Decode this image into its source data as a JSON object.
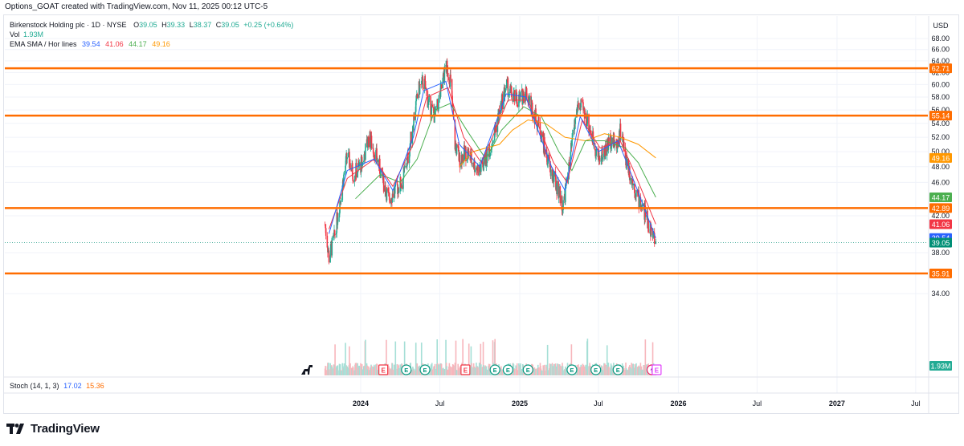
{
  "header": {
    "attribution": "Options_GOAT created with TradingView.com, Nov 11, 2025 00:12 UTC-5"
  },
  "legend": {
    "symbol": "Birkenstock Holding plc · 1D · NYSE",
    "ohlc": {
      "o_label": "O",
      "o": "39.05",
      "h_label": "H",
      "h": "39.33",
      "l_label": "L",
      "l": "38.37",
      "c_label": "C",
      "c": "39.05",
      "change": "+0.25 (+0.64%)"
    },
    "vol_label": "Vol",
    "vol_value": "1.93M",
    "ema_label": "EMA SMA / Hor lines",
    "ema_values": [
      "39.54",
      "41.06",
      "44.17",
      "49.16"
    ]
  },
  "stoch": {
    "label": "Stoch (14, 1, 3)",
    "k": "17.02",
    "d": "15.36"
  },
  "footer": {
    "logo_text": "TradingView"
  },
  "colors": {
    "up": "#22ab94",
    "down": "#f23645",
    "hline": "#ff6d00",
    "ema_blue": "#2962ff",
    "ema_red": "#f23645",
    "ma_green": "#4caf50",
    "ma_orange": "#ff9800",
    "last_price": "#008f76",
    "grid": "#f0f3fa"
  },
  "icons": [
    "dinosaur-icon",
    "earnings-icon",
    "dividend-icon",
    "lightning-icon"
  ],
  "chart_data": {
    "type": "candlestick",
    "currency": "USD",
    "y_axis": {
      "scale": "log",
      "ticks": [
        "68.00",
        "66.00",
        "64.00",
        "62.00",
        "60.00",
        "58.00",
        "56.00",
        "54.00",
        "52.00",
        "50.00",
        "48.00",
        "46.00",
        "42.00",
        "38.00",
        "34.00"
      ]
    },
    "x_axis": {
      "ticks": [
        "2024",
        "Jul",
        "2025",
        "Jul",
        "2026",
        "Jul",
        "2027",
        "Jul"
      ]
    },
    "horizontal_lines": [
      62.71,
      55.14,
      42.89,
      35.91
    ],
    "price_labels": [
      {
        "value": 62.71,
        "text": "62.71",
        "color": "#ff6d00"
      },
      {
        "value": 55.14,
        "text": "55.14",
        "color": "#ff6d00"
      },
      {
        "value": 49.16,
        "text": "49.16",
        "color": "#ff9800"
      },
      {
        "value": 44.17,
        "text": "44.17",
        "color": "#4caf50"
      },
      {
        "value": 42.89,
        "text": "42.89",
        "color": "#ff6d00"
      },
      {
        "value": 41.06,
        "text": "41.06",
        "color": "#f23645"
      },
      {
        "value": 39.54,
        "text": "39.54",
        "color": "#2962ff"
      },
      {
        "value": 39.05,
        "text": "39.05",
        "color": "#008f76"
      },
      {
        "value": 35.91,
        "text": "35.91",
        "color": "#ff6d00"
      }
    ],
    "volume_label": "1.93M",
    "price_path": [
      [
        "2023-10-11",
        41.0
      ],
      [
        "2023-10-20",
        37.5
      ],
      [
        "2023-11-01",
        39.5
      ],
      [
        "2023-11-15",
        44.0
      ],
      [
        "2023-12-01",
        49.5
      ],
      [
        "2023-12-15",
        47.0
      ],
      [
        "2024-01-05",
        48.5
      ],
      [
        "2024-01-20",
        52.0
      ],
      [
        "2024-02-05",
        49.5
      ],
      [
        "2024-02-20",
        46.5
      ],
      [
        "2024-03-05",
        44.0
      ],
      [
        "2024-03-20",
        45.0
      ],
      [
        "2024-04-05",
        46.0
      ],
      [
        "2024-04-20",
        49.5
      ],
      [
        "2024-05-05",
        56.0
      ],
      [
        "2024-05-15",
        59.5
      ],
      [
        "2024-05-25",
        60.5
      ],
      [
        "2024-06-05",
        57.0
      ],
      [
        "2024-06-20",
        55.0
      ],
      [
        "2024-07-01",
        58.0
      ],
      [
        "2024-07-15",
        63.0
      ],
      [
        "2024-07-25",
        61.0
      ],
      [
        "2024-08-05",
        51.0
      ],
      [
        "2024-08-15",
        49.0
      ],
      [
        "2024-09-01",
        50.0
      ],
      [
        "2024-09-15",
        48.5
      ],
      [
        "2024-10-01",
        47.5
      ],
      [
        "2024-10-15",
        49.0
      ],
      [
        "2024-11-01",
        52.0
      ],
      [
        "2024-11-15",
        55.5
      ],
      [
        "2024-12-01",
        60.0
      ],
      [
        "2024-12-15",
        58.0
      ],
      [
        "2025-01-01",
        57.5
      ],
      [
        "2025-01-15",
        59.0
      ],
      [
        "2025-01-31",
        56.0
      ],
      [
        "2025-02-15",
        53.5
      ],
      [
        "2025-03-01",
        50.0
      ],
      [
        "2025-03-15",
        47.0
      ],
      [
        "2025-04-01",
        45.0
      ],
      [
        "2025-04-10",
        43.0
      ],
      [
        "2025-04-25",
        48.0
      ],
      [
        "2025-05-05",
        53.0
      ],
      [
        "2025-05-15",
        57.0
      ],
      [
        "2025-05-25",
        56.0
      ],
      [
        "2025-06-05",
        54.5
      ],
      [
        "2025-06-20",
        51.5
      ],
      [
        "2025-07-01",
        49.0
      ],
      [
        "2025-07-15",
        50.0
      ],
      [
        "2025-08-01",
        52.0
      ],
      [
        "2025-08-10",
        50.5
      ],
      [
        "2025-08-20",
        53.0
      ],
      [
        "2025-09-01",
        49.5
      ],
      [
        "2025-09-15",
        46.5
      ],
      [
        "2025-10-01",
        44.0
      ],
      [
        "2025-10-15",
        42.5
      ],
      [
        "2025-10-25",
        41.0
      ],
      [
        "2025-11-10",
        39.05
      ]
    ],
    "ema_blue": [
      [
        "2023-10-20",
        40.0
      ],
      [
        "2023-12-01",
        47.5
      ],
      [
        "2024-02-01",
        49.0
      ],
      [
        "2024-03-15",
        45.0
      ],
      [
        "2024-05-01",
        52.0
      ],
      [
        "2024-05-25",
        59.0
      ],
      [
        "2024-07-15",
        60.5
      ],
      [
        "2024-08-15",
        51.0
      ],
      [
        "2024-10-01",
        48.0
      ],
      [
        "2024-12-01",
        58.5
      ],
      [
        "2025-01-15",
        58.0
      ],
      [
        "2025-03-15",
        48.0
      ],
      [
        "2025-04-15",
        45.0
      ],
      [
        "2025-05-20",
        55.0
      ],
      [
        "2025-07-01",
        50.0
      ],
      [
        "2025-08-15",
        51.5
      ],
      [
        "2025-09-15",
        47.0
      ],
      [
        "2025-11-10",
        39.54
      ]
    ],
    "ema_red": [
      [
        "2023-10-20",
        40.5
      ],
      [
        "2023-12-01",
        46.5
      ],
      [
        "2024-02-01",
        49.0
      ],
      [
        "2024-03-15",
        45.5
      ],
      [
        "2024-05-05",
        51.5
      ],
      [
        "2024-06-01",
        58.0
      ],
      [
        "2024-07-20",
        59.5
      ],
      [
        "2024-08-25",
        52.0
      ],
      [
        "2024-10-05",
        48.5
      ],
      [
        "2024-12-05",
        57.5
      ],
      [
        "2025-01-20",
        57.5
      ],
      [
        "2025-03-20",
        48.5
      ],
      [
        "2025-04-20",
        46.0
      ],
      [
        "2025-05-25",
        54.5
      ],
      [
        "2025-07-05",
        50.5
      ],
      [
        "2025-08-20",
        51.5
      ],
      [
        "2025-09-20",
        47.5
      ],
      [
        "2025-11-10",
        41.06
      ]
    ],
    "ma_green": [
      [
        "2023-12-20",
        44.0
      ],
      [
        "2024-02-15",
        47.0
      ],
      [
        "2024-04-01",
        46.0
      ],
      [
        "2024-05-10",
        49.0
      ],
      [
        "2024-06-20",
        56.0
      ],
      [
        "2024-07-25",
        57.0
      ],
      [
        "2024-09-01",
        53.0
      ],
      [
        "2024-10-15",
        49.0
      ],
      [
        "2024-11-20",
        53.0
      ],
      [
        "2025-01-10",
        56.5
      ],
      [
        "2025-02-20",
        55.0
      ],
      [
        "2025-04-01",
        50.0
      ],
      [
        "2025-05-01",
        47.5
      ],
      [
        "2025-06-01",
        51.5
      ],
      [
        "2025-07-15",
        51.5
      ],
      [
        "2025-09-01",
        50.5
      ],
      [
        "2025-10-01",
        48.5
      ],
      [
        "2025-11-10",
        44.17
      ]
    ],
    "ma_orange": [
      [
        "2024-08-15",
        48.0
      ],
      [
        "2024-09-15",
        50.0
      ],
      [
        "2024-10-15",
        50.5
      ],
      [
        "2024-11-15",
        51.0
      ],
      [
        "2024-12-15",
        53.0
      ],
      [
        "2025-01-20",
        54.5
      ],
      [
        "2025-03-01",
        54.0
      ],
      [
        "2025-04-15",
        52.0
      ],
      [
        "2025-06-01",
        51.5
      ],
      [
        "2025-07-15",
        52.5
      ],
      [
        "2025-08-20",
        52.0
      ],
      [
        "2025-10-01",
        51.0
      ],
      [
        "2025-11-10",
        49.16
      ]
    ],
    "events": [
      {
        "date": "2024-02-22",
        "type": "E"
      },
      {
        "date": "2024-04-15",
        "type": "D"
      },
      {
        "date": "2024-05-28",
        "type": "D"
      },
      {
        "date": "2024-08-29",
        "type": "E"
      },
      {
        "date": "2024-11-05",
        "type": "D"
      },
      {
        "date": "2024-12-05",
        "type": "D"
      },
      {
        "date": "2025-01-20",
        "type": "D"
      },
      {
        "date": "2025-05-01",
        "type": "D"
      },
      {
        "date": "2025-06-25",
        "type": "D"
      },
      {
        "date": "2025-08-15",
        "type": "D"
      },
      {
        "date": "2025-11-01",
        "type": "lightning"
      },
      {
        "date": "2025-11-12",
        "type": "E"
      }
    ]
  }
}
